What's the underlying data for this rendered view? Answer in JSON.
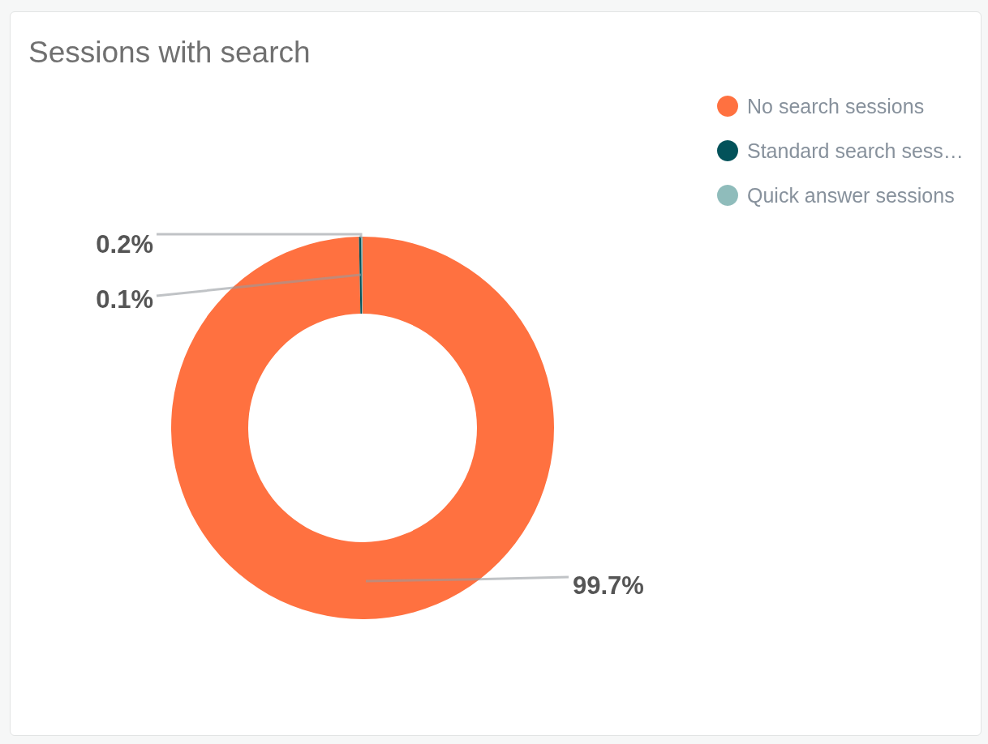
{
  "chart_data": {
    "type": "donut",
    "title": "Sessions with search",
    "categories": [
      "No search sessions",
      "Standard search sess…",
      "Quick answer sessions"
    ],
    "values": [
      99.7,
      0.2,
      0.1
    ],
    "colors": [
      "#ff7140",
      "#03525a",
      "#8fbcbb"
    ],
    "value_labels": [
      "99.7%",
      "0.2%",
      "0.1%"
    ],
    "legend": "top right"
  }
}
